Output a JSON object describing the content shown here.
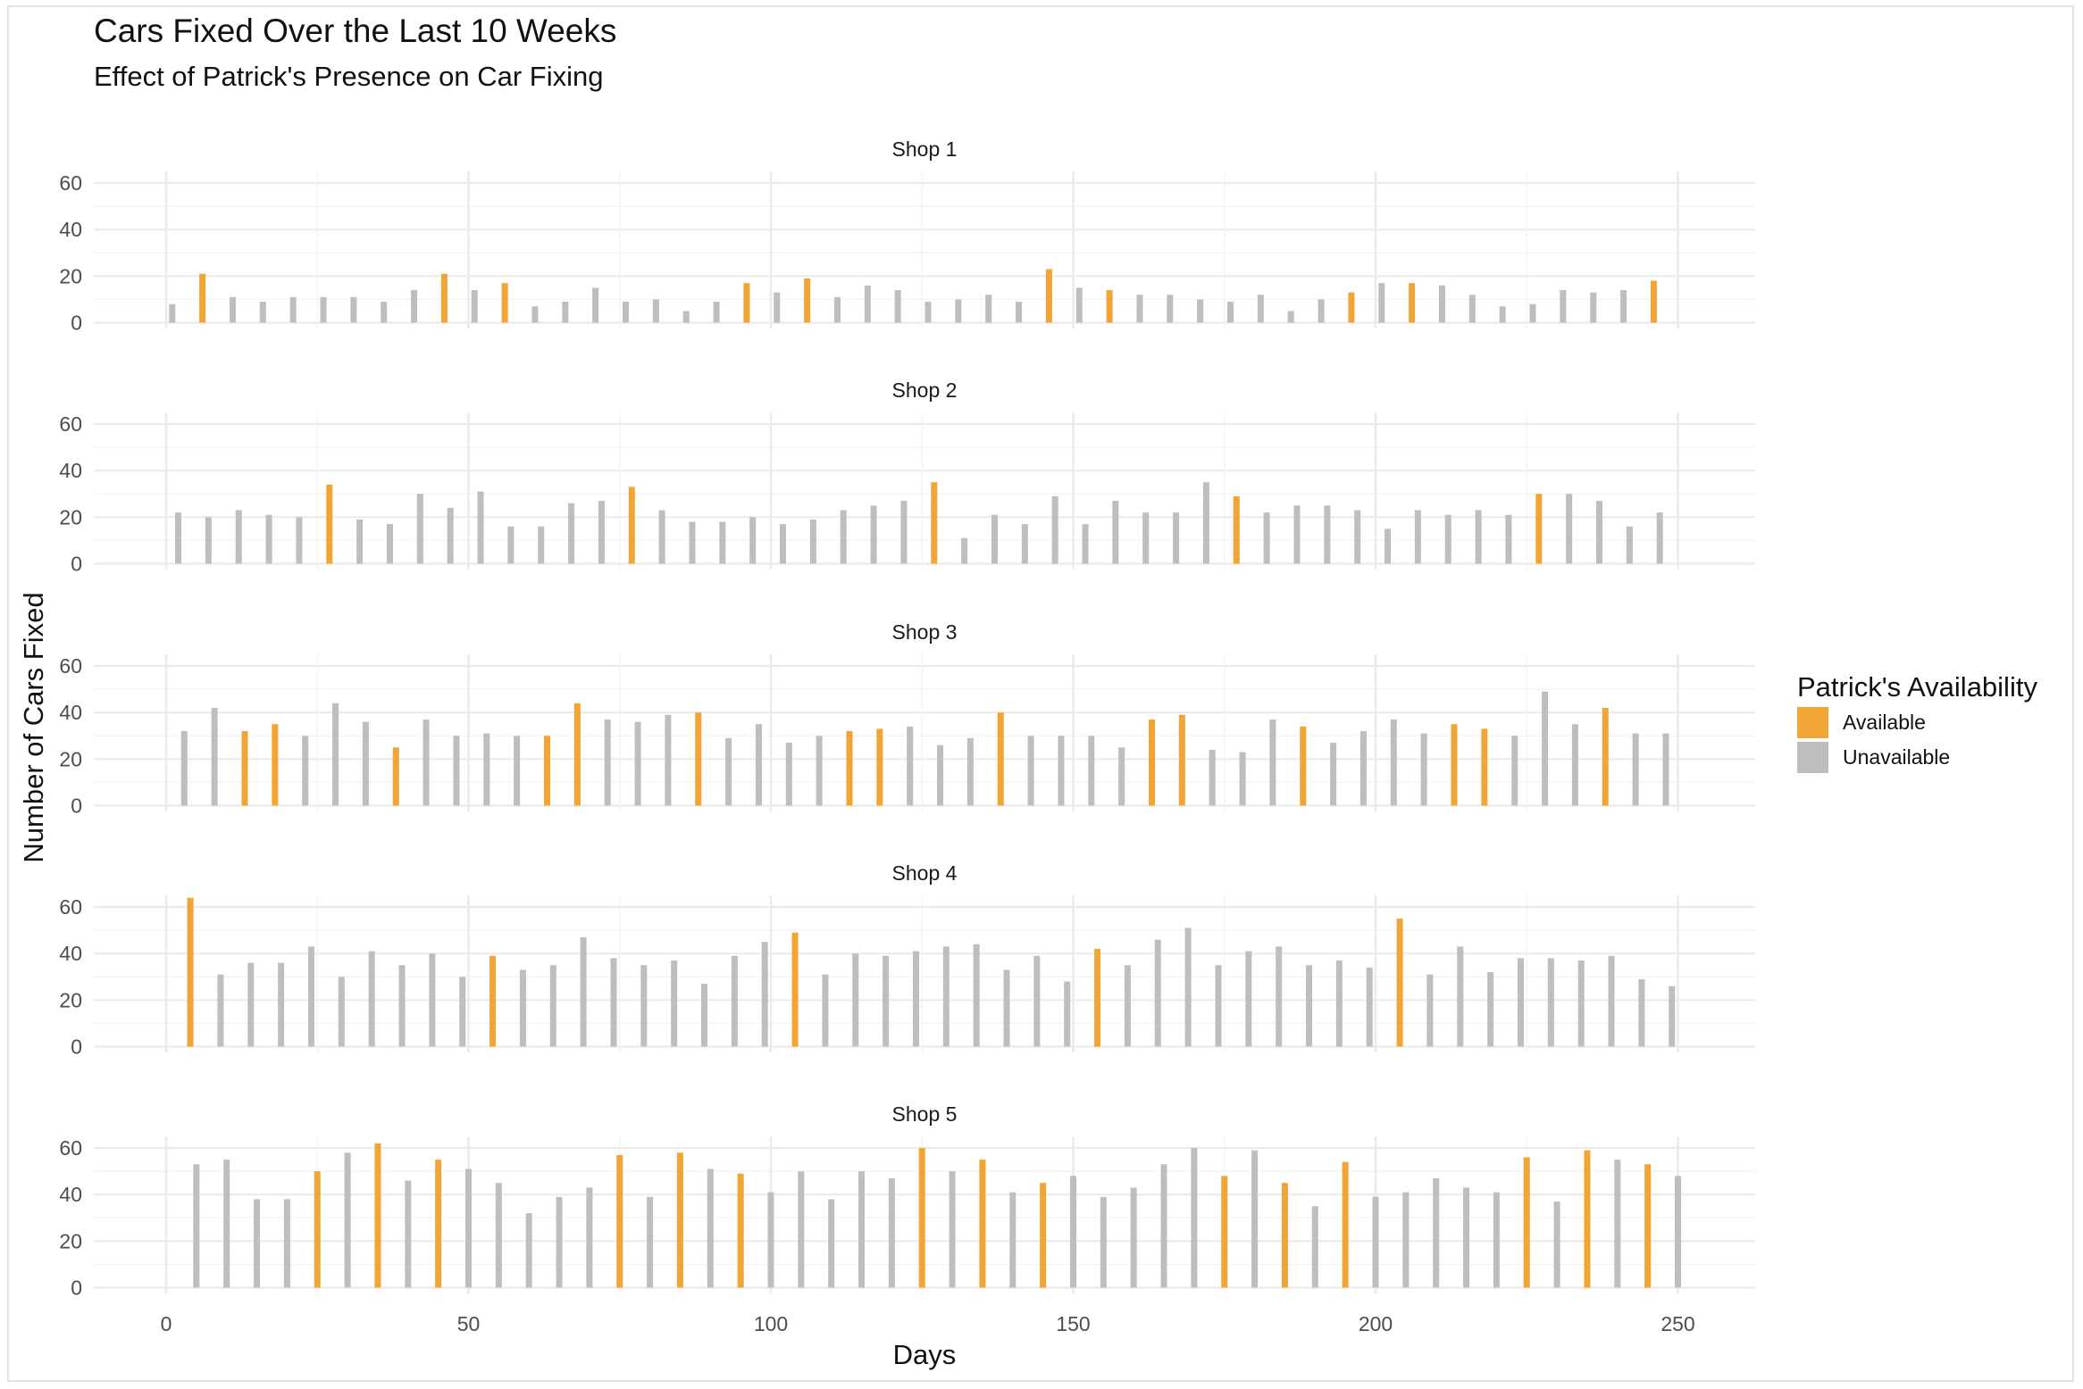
{
  "chart_data": {
    "type": "bar",
    "title": "Cars Fixed Over the Last 10 Weeks",
    "subtitle": "Effect of Patrick's Presence on Car Fixing",
    "xlabel": "Days",
    "ylabel": "Number of Cars Fixed",
    "xlim": [
      -12,
      262
    ],
    "ylim": [
      0,
      60
    ],
    "x_ticks": [
      0,
      50,
      100,
      150,
      200,
      250
    ],
    "y_ticks": [
      0,
      20,
      40,
      60
    ],
    "grid": true,
    "legend": {
      "title": "Patrick's Availability",
      "position": "right",
      "entries": [
        {
          "label": "Available",
          "color": "#F0A535"
        },
        {
          "label": "Unavailable",
          "color": "#BEBEBE"
        }
      ]
    },
    "colors": {
      "Available": "#F0A535",
      "Unavailable": "#BEBEBE"
    },
    "panels": [
      {
        "name": "Shop 1",
        "x": [
          1,
          6,
          11,
          16,
          21,
          26,
          31,
          36,
          41,
          46,
          51,
          56,
          61,
          66,
          71,
          76,
          81,
          86,
          91,
          96,
          101,
          106,
          111,
          116,
          121,
          126,
          131,
          136,
          141,
          146,
          151,
          156,
          161,
          166,
          171,
          176,
          181,
          186,
          191,
          196,
          201,
          206,
          211,
          216,
          221,
          226,
          231,
          236,
          241,
          246
        ],
        "values": [
          8,
          21,
          11,
          9,
          11,
          11,
          11,
          9,
          14,
          21,
          14,
          17,
          7,
          9,
          15,
          9,
          10,
          5,
          9,
          17,
          13,
          19,
          11,
          16,
          14,
          9,
          10,
          12,
          9,
          23,
          15,
          14,
          12,
          12,
          10,
          9,
          12,
          5,
          10,
          13,
          17,
          17,
          16,
          12,
          7,
          8,
          14,
          13,
          14,
          18
        ],
        "status": [
          "U",
          "A",
          "U",
          "U",
          "U",
          "U",
          "U",
          "U",
          "U",
          "A",
          "U",
          "A",
          "U",
          "U",
          "U",
          "U",
          "U",
          "U",
          "U",
          "A",
          "U",
          "A",
          "U",
          "U",
          "U",
          "U",
          "U",
          "U",
          "U",
          "A",
          "U",
          "A",
          "U",
          "U",
          "U",
          "U",
          "U",
          "U",
          "U",
          "A",
          "U",
          "A",
          "U",
          "U",
          "U",
          "U",
          "U",
          "U",
          "U",
          "A"
        ]
      },
      {
        "name": "Shop 2",
        "x": [
          2,
          7,
          12,
          17,
          22,
          27,
          32,
          37,
          42,
          47,
          52,
          57,
          62,
          67,
          72,
          77,
          82,
          87,
          92,
          97,
          102,
          107,
          112,
          117,
          122,
          127,
          132,
          137,
          142,
          147,
          152,
          157,
          162,
          167,
          172,
          177,
          182,
          187,
          192,
          197,
          202,
          207,
          212,
          217,
          222,
          227,
          232,
          237,
          242,
          247
        ],
        "values": [
          22,
          20,
          23,
          21,
          20,
          34,
          19,
          17,
          30,
          24,
          31,
          16,
          16,
          26,
          27,
          33,
          23,
          18,
          18,
          20,
          17,
          19,
          23,
          25,
          27,
          35,
          11,
          21,
          17,
          29,
          17,
          27,
          22,
          22,
          35,
          29,
          22,
          25,
          25,
          23,
          15,
          23,
          21,
          23,
          21,
          30,
          30,
          27,
          16,
          22
        ],
        "status": [
          "U",
          "U",
          "U",
          "U",
          "U",
          "A",
          "U",
          "U",
          "U",
          "U",
          "U",
          "U",
          "U",
          "U",
          "U",
          "A",
          "U",
          "U",
          "U",
          "U",
          "U",
          "U",
          "U",
          "U",
          "U",
          "A",
          "U",
          "U",
          "U",
          "U",
          "U",
          "U",
          "U",
          "U",
          "U",
          "A",
          "U",
          "U",
          "U",
          "U",
          "U",
          "U",
          "U",
          "U",
          "U",
          "A",
          "U",
          "U",
          "U",
          "U"
        ]
      },
      {
        "name": "Shop 3",
        "x": [
          3,
          8,
          13,
          18,
          23,
          28,
          33,
          38,
          43,
          48,
          53,
          58,
          63,
          68,
          73,
          78,
          83,
          88,
          93,
          98,
          103,
          108,
          113,
          118,
          123,
          128,
          133,
          138,
          143,
          148,
          153,
          158,
          163,
          168,
          173,
          178,
          183,
          188,
          193,
          198,
          203,
          208,
          213,
          218,
          223,
          228,
          233,
          238,
          243,
          248
        ],
        "values": [
          32,
          42,
          32,
          35,
          30,
          44,
          36,
          25,
          37,
          30,
          31,
          30,
          30,
          44,
          37,
          36,
          39,
          40,
          29,
          35,
          27,
          30,
          32,
          33,
          34,
          26,
          29,
          40,
          30,
          30,
          30,
          25,
          37,
          39,
          24,
          23,
          37,
          34,
          27,
          32,
          37,
          31,
          35,
          33,
          30,
          49,
          35,
          42,
          31,
          31
        ],
        "status": [
          "U",
          "U",
          "A",
          "A",
          "U",
          "U",
          "U",
          "A",
          "U",
          "U",
          "U",
          "U",
          "A",
          "A",
          "U",
          "U",
          "U",
          "A",
          "U",
          "U",
          "U",
          "U",
          "A",
          "A",
          "U",
          "U",
          "U",
          "A",
          "U",
          "U",
          "U",
          "U",
          "A",
          "A",
          "U",
          "U",
          "U",
          "A",
          "U",
          "U",
          "U",
          "U",
          "A",
          "A",
          "U",
          "U",
          "U",
          "A",
          "U",
          "U"
        ]
      },
      {
        "name": "Shop 4",
        "x": [
          4,
          9,
          14,
          19,
          24,
          29,
          34,
          39,
          44,
          49,
          54,
          59,
          64,
          69,
          74,
          79,
          84,
          89,
          94,
          99,
          104,
          109,
          114,
          119,
          124,
          129,
          134,
          139,
          144,
          149,
          154,
          159,
          164,
          169,
          174,
          179,
          184,
          189,
          194,
          199,
          204,
          209,
          214,
          219,
          224,
          229,
          234,
          239,
          244,
          249
        ],
        "values": [
          64,
          31,
          36,
          36,
          43,
          30,
          41,
          35,
          40,
          30,
          39,
          33,
          35,
          47,
          38,
          35,
          37,
          27,
          39,
          45,
          49,
          31,
          40,
          39,
          41,
          43,
          44,
          33,
          39,
          28,
          42,
          35,
          46,
          51,
          35,
          41,
          43,
          35,
          37,
          34,
          55,
          31,
          43,
          32,
          38,
          38,
          37,
          39,
          29,
          26
        ],
        "status": [
          "A",
          "U",
          "U",
          "U",
          "U",
          "U",
          "U",
          "U",
          "U",
          "U",
          "A",
          "U",
          "U",
          "U",
          "U",
          "U",
          "U",
          "U",
          "U",
          "U",
          "A",
          "U",
          "U",
          "U",
          "U",
          "U",
          "U",
          "U",
          "U",
          "U",
          "A",
          "U",
          "U",
          "U",
          "U",
          "U",
          "U",
          "U",
          "U",
          "U",
          "A",
          "U",
          "U",
          "U",
          "U",
          "U",
          "U",
          "U",
          "U",
          "U"
        ]
      },
      {
        "name": "Shop 5",
        "x": [
          5,
          10,
          15,
          20,
          25,
          30,
          35,
          40,
          45,
          50,
          55,
          60,
          65,
          70,
          75,
          80,
          85,
          90,
          95,
          100,
          105,
          110,
          115,
          120,
          125,
          130,
          135,
          140,
          145,
          150,
          155,
          160,
          165,
          170,
          175,
          180,
          185,
          190,
          195,
          200,
          205,
          210,
          215,
          220,
          225,
          230,
          235,
          240,
          245,
          250
        ],
        "values": [
          53,
          55,
          38,
          38,
          50,
          58,
          62,
          46,
          55,
          51,
          45,
          32,
          39,
          43,
          57,
          39,
          58,
          51,
          49,
          41,
          50,
          38,
          50,
          47,
          60,
          50,
          55,
          41,
          45,
          48,
          39,
          43,
          53,
          60,
          48,
          59,
          45,
          35,
          54,
          39,
          41,
          47,
          43,
          41,
          56,
          37,
          59,
          55,
          53,
          48
        ],
        "status": [
          "U",
          "U",
          "U",
          "U",
          "A",
          "U",
          "A",
          "U",
          "A",
          "U",
          "U",
          "U",
          "U",
          "U",
          "A",
          "U",
          "A",
          "U",
          "A",
          "U",
          "U",
          "U",
          "U",
          "U",
          "A",
          "U",
          "A",
          "U",
          "A",
          "U",
          "U",
          "U",
          "U",
          "U",
          "A",
          "U",
          "A",
          "U",
          "A",
          "U",
          "U",
          "U",
          "U",
          "U",
          "A",
          "U",
          "A",
          "U",
          "A",
          "U"
        ]
      }
    ]
  }
}
